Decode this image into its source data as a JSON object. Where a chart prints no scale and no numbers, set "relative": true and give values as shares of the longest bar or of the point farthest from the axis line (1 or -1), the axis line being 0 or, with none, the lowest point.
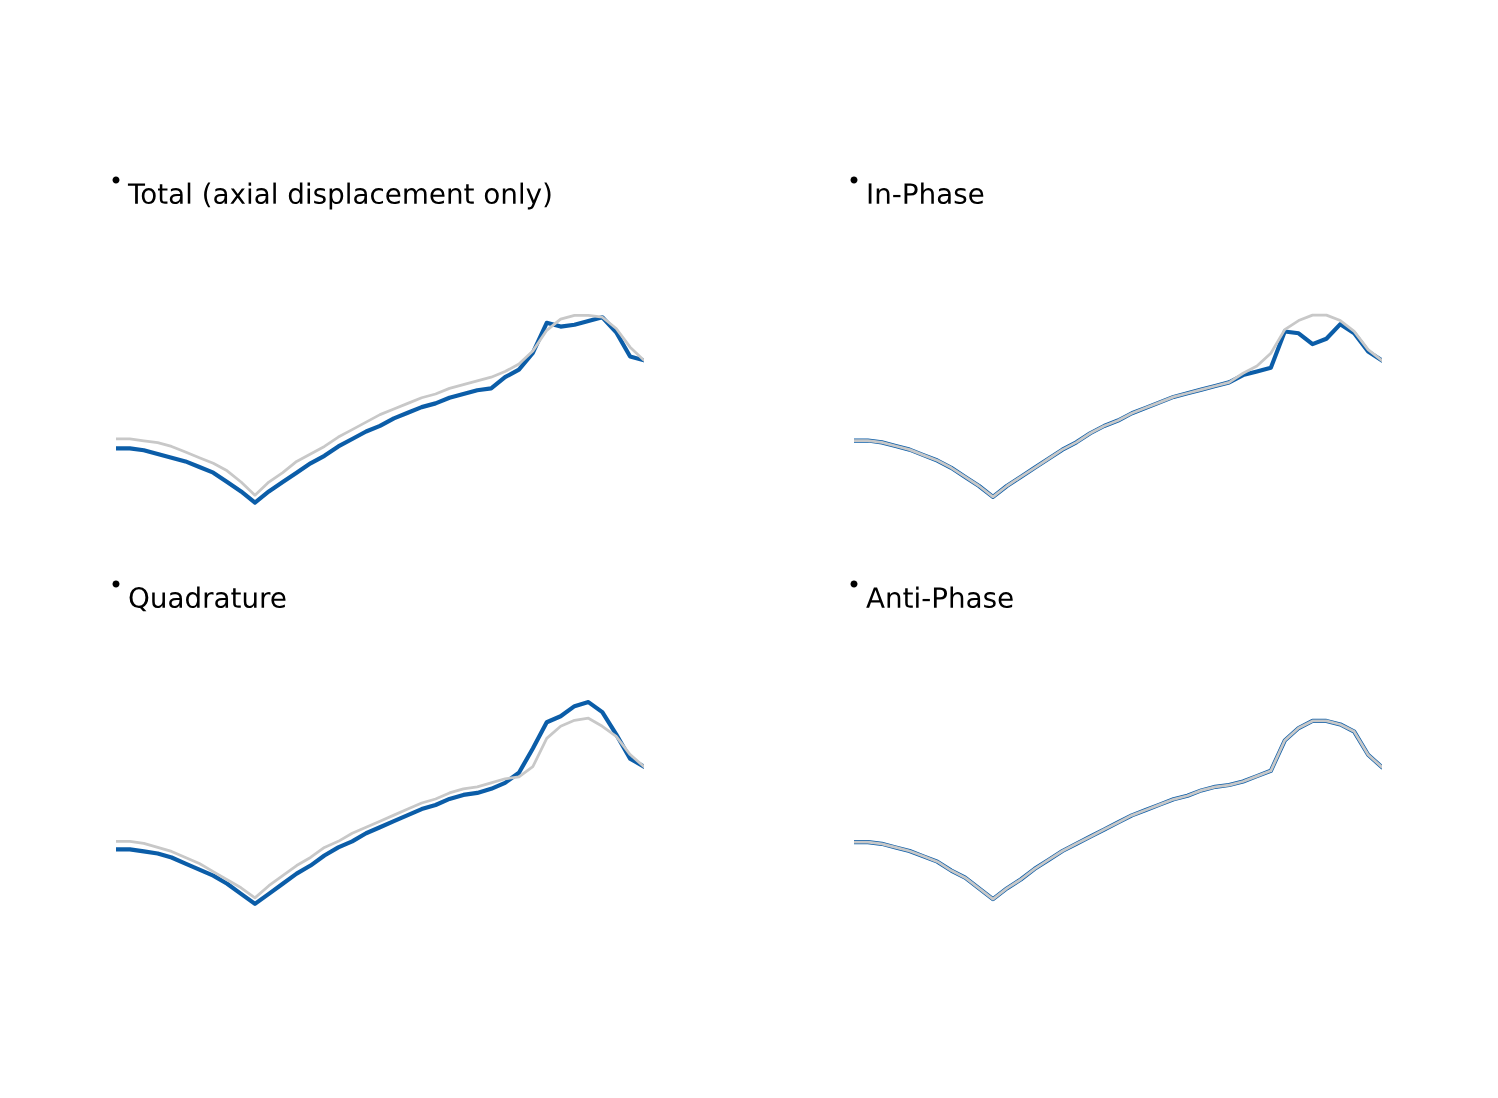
{
  "chart_data": [
    {
      "type": "line",
      "title": "Total (axial displacement only)",
      "relative": true,
      "categories": [
        null,
        null,
        null,
        null,
        null,
        null,
        null,
        null,
        null,
        null,
        null,
        null,
        null,
        null,
        null,
        null,
        null,
        null,
        null,
        null,
        null,
        null,
        null,
        null,
        null,
        null,
        null,
        null,
        null,
        null,
        null,
        null,
        null,
        null,
        null,
        null,
        null,
        null,
        null
      ],
      "series": [
        {
          "color": "#0b5da8",
          "values": [
            0.29,
            0.29,
            0.28,
            0.26,
            0.24,
            0.22,
            0.19,
            0.16,
            0.11,
            0.06,
            0,
            0.06,
            0.11,
            0.16,
            0.21,
            0.25,
            0.3,
            0.34,
            0.38,
            0.41,
            0.45,
            0.48,
            0.51,
            0.53,
            0.56,
            0.58,
            0.6,
            0.61,
            0.67,
            0.71,
            0.8,
            0.96,
            0.94,
            0.95,
            0.97,
            0.99,
            0.91,
            0.78,
            0.76
          ]
        },
        {
          "color": "#c8c8c8",
          "values": [
            0.34,
            0.34,
            0.33,
            0.32,
            0.3,
            0.27,
            0.24,
            0.21,
            0.17,
            0.11,
            0.04,
            0.11,
            0.16,
            0.22,
            0.26,
            0.3,
            0.35,
            0.39,
            0.43,
            0.47,
            0.5,
            0.53,
            0.56,
            0.58,
            0.61,
            0.63,
            0.65,
            0.67,
            0.7,
            0.74,
            0.81,
            0.92,
            0.98,
            1,
            1,
            0.99,
            0.93,
            0.83,
            0.76
          ]
        }
      ]
    },
    {
      "type": "line",
      "title": "In-Phase",
      "relative": true,
      "categories": [
        null,
        null,
        null,
        null,
        null,
        null,
        null,
        null,
        null,
        null,
        null,
        null,
        null,
        null,
        null,
        null,
        null,
        null,
        null,
        null,
        null,
        null,
        null,
        null,
        null,
        null,
        null,
        null,
        null,
        null,
        null,
        null,
        null,
        null,
        null,
        null,
        null,
        null,
        null
      ],
      "series": [
        {
          "color": "#0b5da8",
          "values": [
            0.31,
            0.31,
            0.3,
            0.28,
            0.26,
            0.23,
            0.2,
            0.16,
            0.11,
            0.06,
            0,
            0.06,
            0.11,
            0.16,
            0.21,
            0.26,
            0.3,
            0.35,
            0.39,
            0.42,
            0.46,
            0.49,
            0.52,
            0.55,
            0.57,
            0.59,
            0.61,
            0.63,
            0.67,
            0.69,
            0.71,
            0.91,
            0.9,
            0.84,
            0.87,
            0.95,
            0.9,
            0.8,
            0.75
          ]
        },
        {
          "color": "#c8c8c8",
          "values": [
            0.31,
            0.31,
            0.3,
            0.28,
            0.26,
            0.23,
            0.2,
            0.16,
            0.11,
            0.06,
            0,
            0.06,
            0.11,
            0.16,
            0.21,
            0.26,
            0.3,
            0.35,
            0.39,
            0.42,
            0.46,
            0.49,
            0.52,
            0.55,
            0.57,
            0.59,
            0.61,
            0.63,
            0.68,
            0.72,
            0.79,
            0.92,
            0.97,
            1,
            1,
            0.97,
            0.91,
            0.81,
            0.75
          ]
        }
      ]
    },
    {
      "type": "line",
      "title": "Quadrature",
      "relative": true,
      "categories": [
        null,
        null,
        null,
        null,
        null,
        null,
        null,
        null,
        null,
        null,
        null,
        null,
        null,
        null,
        null,
        null,
        null,
        null,
        null,
        null,
        null,
        null,
        null,
        null,
        null,
        null,
        null,
        null,
        null,
        null,
        null,
        null,
        null,
        null,
        null,
        null,
        null,
        null,
        null
      ],
      "series": [
        {
          "color": "#0b5da8",
          "values": [
            0.27,
            0.27,
            0.26,
            0.25,
            0.23,
            0.2,
            0.17,
            0.14,
            0.1,
            0.05,
            0,
            0.05,
            0.1,
            0.15,
            0.19,
            0.24,
            0.28,
            0.31,
            0.35,
            0.38,
            0.41,
            0.44,
            0.47,
            0.49,
            0.52,
            0.54,
            0.55,
            0.57,
            0.6,
            0.65,
            0.77,
            0.9,
            0.93,
            0.98,
            1,
            0.95,
            0.84,
            0.72,
            0.68
          ]
        },
        {
          "color": "#c8c8c8",
          "values": [
            0.31,
            0.31,
            0.3,
            0.28,
            0.26,
            0.23,
            0.2,
            0.16,
            0.12,
            0.08,
            0.03,
            0.09,
            0.14,
            0.19,
            0.23,
            0.28,
            0.31,
            0.35,
            0.38,
            0.41,
            0.44,
            0.47,
            0.5,
            0.52,
            0.55,
            0.57,
            0.58,
            0.6,
            0.62,
            0.63,
            0.68,
            0.82,
            0.88,
            0.91,
            0.92,
            0.88,
            0.83,
            0.74,
            0.68
          ]
        }
      ]
    },
    {
      "type": "line",
      "title": "Anti-Phase",
      "relative": true,
      "categories": [
        null,
        null,
        null,
        null,
        null,
        null,
        null,
        null,
        null,
        null,
        null,
        null,
        null,
        null,
        null,
        null,
        null,
        null,
        null,
        null,
        null,
        null,
        null,
        null,
        null,
        null,
        null,
        null,
        null,
        null,
        null,
        null,
        null,
        null,
        null,
        null,
        null,
        null,
        null
      ],
      "series": [
        {
          "color": "#0b5da8",
          "values": [
            0.32,
            0.32,
            0.31,
            0.29,
            0.27,
            0.24,
            0.21,
            0.16,
            0.12,
            0.06,
            0,
            0.06,
            0.11,
            0.17,
            0.22,
            0.27,
            0.31,
            0.35,
            0.39,
            0.43,
            0.47,
            0.5,
            0.53,
            0.56,
            0.58,
            0.61,
            0.63,
            0.64,
            0.66,
            0.69,
            0.72,
            0.89,
            0.96,
            1,
            1,
            0.98,
            0.94,
            0.81,
            0.74
          ]
        },
        {
          "color": "#c8c8c8",
          "values": [
            0.32,
            0.32,
            0.31,
            0.29,
            0.27,
            0.24,
            0.21,
            0.16,
            0.12,
            0.06,
            0,
            0.06,
            0.11,
            0.17,
            0.22,
            0.27,
            0.31,
            0.35,
            0.39,
            0.43,
            0.47,
            0.5,
            0.53,
            0.56,
            0.58,
            0.61,
            0.63,
            0.64,
            0.66,
            0.69,
            0.72,
            0.89,
            0.96,
            1,
            1,
            0.98,
            0.94,
            0.81,
            0.74
          ]
        }
      ]
    }
  ]
}
